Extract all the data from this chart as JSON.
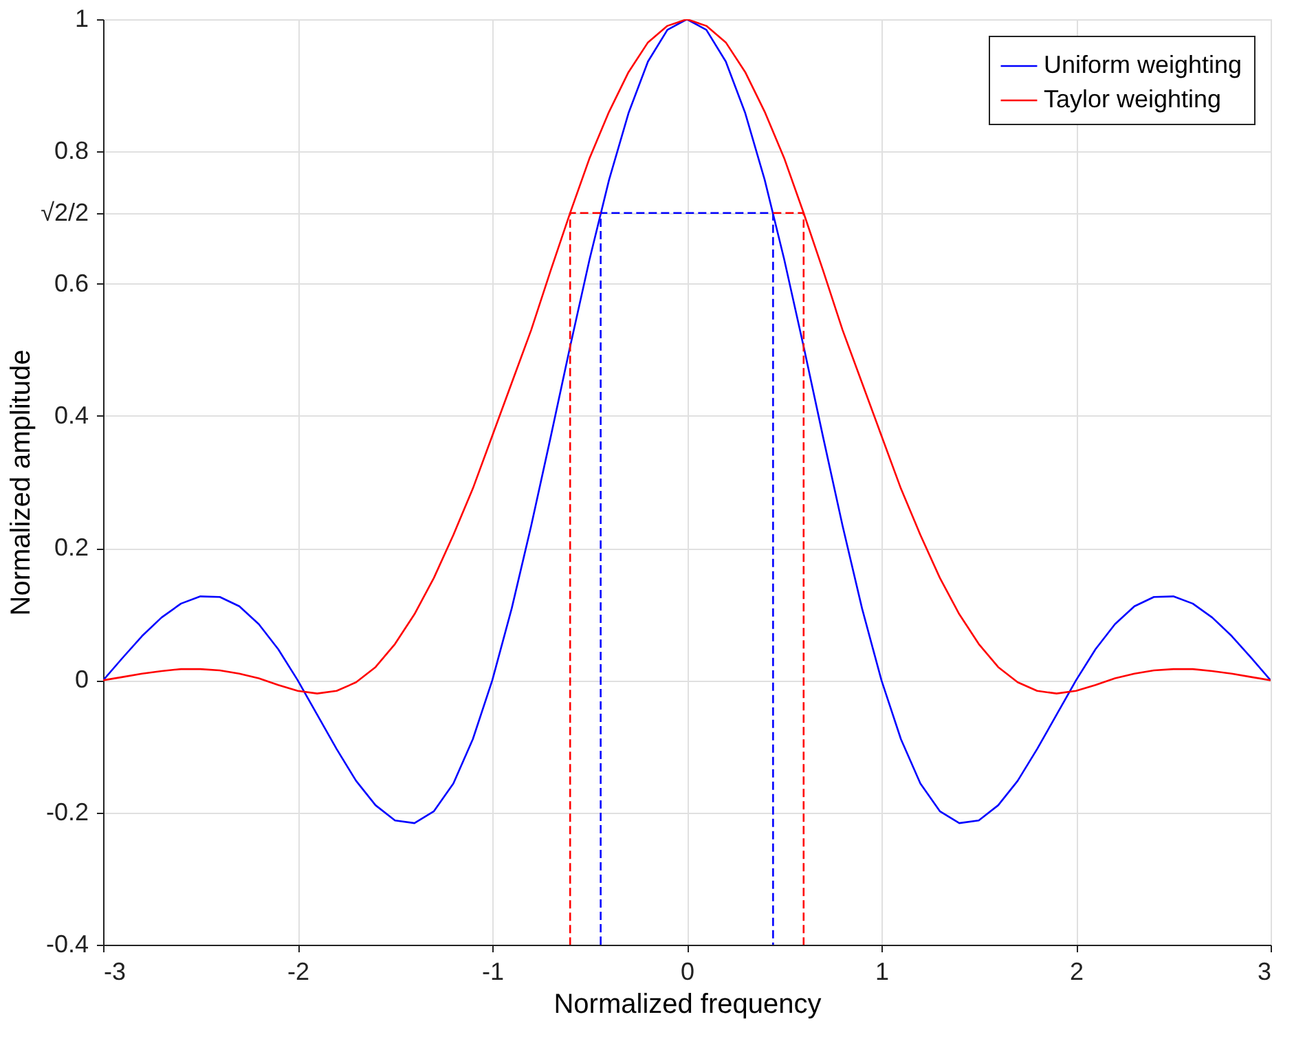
{
  "chart_data": {
    "type": "line",
    "xlabel": "Normalized frequency",
    "ylabel": "Normalized amplitude",
    "x": [
      -3,
      -2.9,
      -2.8,
      -2.7,
      -2.6,
      -2.5,
      -2.4,
      -2.3,
      -2.2,
      -2.1,
      -2,
      -1.9,
      -1.8,
      -1.7,
      -1.6,
      -1.5,
      -1.4,
      -1.3,
      -1.2,
      -1.1,
      -1,
      -0.9,
      -0.8,
      -0.7,
      -0.6,
      -0.5,
      -0.4,
      -0.3,
      -0.2,
      -0.1,
      0,
      0.1,
      0.2,
      0.3,
      0.4,
      0.5,
      0.6,
      0.7,
      0.8,
      0.9,
      1,
      1.1,
      1.2,
      1.3,
      1.4,
      1.5,
      1.6,
      1.7,
      1.8,
      1.9,
      2,
      2.1,
      2.2,
      2.3,
      2.4,
      2.5,
      2.6,
      2.7,
      2.8,
      2.9,
      3
    ],
    "series": [
      {
        "name": "Uniform weighting",
        "color": "#0000ff",
        "values": [
          0,
          0.034,
          0.067,
          0.095,
          0.116,
          0.127,
          0.126,
          0.112,
          0.085,
          0.047,
          0,
          -0.052,
          -0.104,
          -0.152,
          -0.189,
          -0.212,
          -0.216,
          -0.198,
          -0.156,
          -0.089,
          0,
          0.109,
          0.234,
          0.368,
          0.505,
          0.637,
          0.757,
          0.858,
          0.936,
          0.984,
          1,
          0.984,
          0.936,
          0.858,
          0.757,
          0.637,
          0.505,
          0.368,
          0.234,
          0.109,
          0,
          -0.089,
          -0.156,
          -0.198,
          -0.216,
          -0.212,
          -0.189,
          -0.152,
          -0.104,
          -0.052,
          0,
          0.047,
          0.085,
          0.112,
          0.126,
          0.127,
          0.116,
          0.095,
          0.067,
          0.034,
          0
        ]
      },
      {
        "name": "Taylor weighting",
        "color": "#ff0000",
        "values": [
          0,
          0.005,
          0.01,
          0.014,
          0.017,
          0.017,
          0.015,
          0.01,
          0.003,
          -0.007,
          -0.016,
          -0.02,
          -0.016,
          -0.003,
          0.02,
          0.055,
          0.1,
          0.155,
          0.22,
          0.29,
          0.37,
          0.45,
          0.53,
          0.62,
          0.707,
          0.79,
          0.86,
          0.92,
          0.965,
          0.99,
          1,
          0.99,
          0.965,
          0.92,
          0.86,
          0.79,
          0.707,
          0.62,
          0.53,
          0.45,
          0.37,
          0.29,
          0.22,
          0.155,
          0.1,
          0.055,
          0.02,
          -0.003,
          -0.016,
          -0.02,
          -0.016,
          -0.007,
          0.003,
          0.01,
          0.015,
          0.017,
          0.017,
          0.014,
          0.01,
          0.005,
          0
        ]
      },
      {
        "color": "#0000ff",
        "line_style": "dashed",
        "x": [
          -0.443,
          -0.443,
          0.443,
          0.443
        ],
        "values": [
          -0.4,
          0.707,
          0.707,
          -0.4
        ]
      },
      {
        "color": "#ff0000",
        "line_style": "dashed",
        "x": [
          -0.443,
          -0.6,
          -0.6
        ],
        "values": [
          0.707,
          0.707,
          -0.4
        ]
      },
      {
        "color": "#ff0000",
        "line_style": "dashed",
        "x": [
          0.443,
          0.6,
          0.6
        ],
        "values": [
          0.707,
          0.707,
          -0.4
        ]
      }
    ],
    "xlim": [
      -3,
      3
    ],
    "xticks": [
      -3,
      -2,
      -1,
      0,
      1,
      2,
      3
    ],
    "ylim": [
      -0.4,
      1
    ],
    "yticks": [
      -0.4,
      -0.2,
      0,
      0.2,
      0.4,
      0.6,
      {
        "value": 0.7071,
        "label": "√2/2"
      },
      0.8,
      1
    ],
    "grid": true,
    "legend": "top right",
    "line_style": "solid"
  }
}
